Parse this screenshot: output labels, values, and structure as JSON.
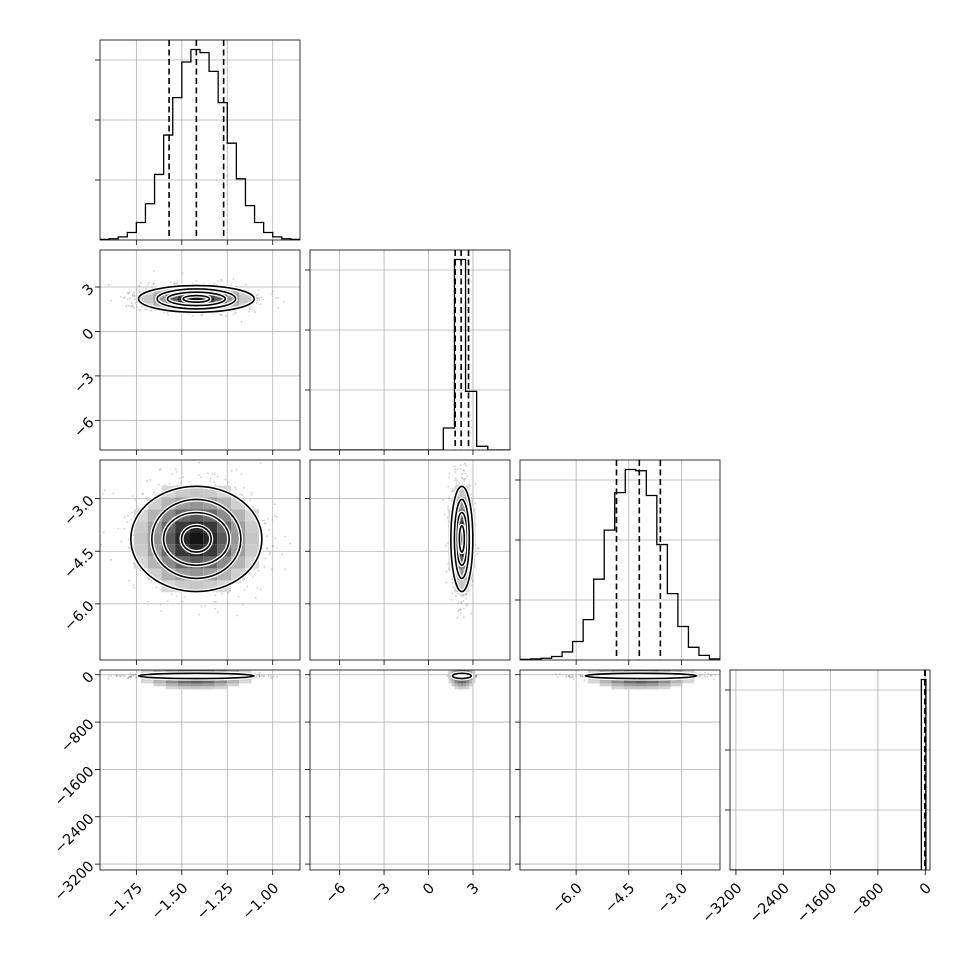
{
  "chart_data": {
    "type": "corner",
    "n_params": 4,
    "title": "",
    "parameter_labels": [
      "",
      "",
      "",
      ""
    ],
    "grid": true,
    "colors": {
      "line": "#000000",
      "grid": "#b0b0b0",
      "points": "#808080"
    },
    "axes": [
      {
        "range": [
          -1.95,
          -0.85
        ],
        "ticks": [
          -1.75,
          -1.5,
          -1.25,
          -1.0
        ],
        "tick_labels": [
          "−1.75",
          "−1.50",
          "−1.25",
          "−1.00"
        ]
      },
      {
        "range": [
          -8.0,
          5.5
        ],
        "ticks": [
          -6,
          -3,
          0,
          3
        ],
        "tick_labels": [
          "−6",
          "−3",
          "0",
          "3"
        ]
      },
      {
        "range": [
          -7.6,
          -1.9
        ],
        "ticks": [
          -6.0,
          -4.5,
          -3.0
        ],
        "tick_labels": [
          "−6.0",
          "−4.5",
          "−3.0"
        ]
      },
      {
        "range": [
          -3300,
          80
        ],
        "ticks": [
          -3200,
          -2400,
          -1600,
          -800,
          0
        ],
        "tick_labels": [
          "−3200",
          "−2400",
          "−1600",
          "−800",
          "0"
        ]
      }
    ],
    "marginals": [
      {
        "param": 0,
        "bin_edges": [
          -1.95,
          -1.9,
          -1.85,
          -1.8,
          -1.75,
          -1.7,
          -1.65,
          -1.6,
          -1.55,
          -1.5,
          -1.45,
          -1.4,
          -1.35,
          -1.3,
          -1.25,
          -1.2,
          -1.15,
          -1.1,
          -1.05,
          -1.0,
          -0.95,
          -0.9,
          -0.85
        ],
        "counts": [
          1,
          2,
          5,
          12,
          28,
          58,
          105,
          168,
          228,
          285,
          305,
          300,
          270,
          220,
          155,
          98,
          55,
          28,
          12,
          5,
          2,
          1
        ],
        "quantiles": [
          -1.57,
          -1.42,
          -1.27
        ]
      },
      {
        "param": 1,
        "bin_edges": [
          -8.0,
          -7.25,
          -6.5,
          -5.75,
          -5.0,
          -4.25,
          -3.5,
          -2.75,
          -2.0,
          -1.25,
          -0.5,
          0.25,
          1.0,
          1.75,
          2.5,
          3.25,
          4.0,
          4.75,
          5.5
        ],
        "counts": [
          0,
          0,
          0,
          0,
          0,
          0,
          0,
          0,
          0,
          0,
          0,
          0,
          30,
          260,
          80,
          5,
          0,
          0
        ],
        "quantiles": [
          1.8,
          2.2,
          2.7
        ]
      },
      {
        "param": 2,
        "bin_edges": [
          -7.6,
          -7.3,
          -7.0,
          -6.7,
          -6.4,
          -6.1,
          -5.8,
          -5.5,
          -5.2,
          -4.9,
          -4.6,
          -4.3,
          -4.0,
          -3.7,
          -3.4,
          -3.1,
          -2.8,
          -2.5,
          -2.2,
          -1.9
        ],
        "counts": [
          1,
          2,
          3,
          6,
          14,
          32,
          70,
          140,
          225,
          290,
          330,
          328,
          285,
          200,
          115,
          58,
          22,
          8,
          2
        ],
        "quantiles": [
          -4.85,
          -4.2,
          -3.6
        ]
      },
      {
        "param": 3,
        "bin_edges": [
          -3300,
          -3223,
          -3146,
          -3069,
          -2992,
          -2915,
          -2838,
          -2761,
          -2684,
          -2607,
          -2530,
          -2453,
          -2376,
          -2299,
          -2222,
          -2145,
          -2068,
          -1991,
          -1914,
          -1837,
          -1760,
          -1683,
          -1606,
          -1529,
          -1452,
          -1375,
          -1298,
          -1221,
          -1144,
          -1067,
          -990,
          -913,
          -836,
          -759,
          -682,
          -605,
          -528,
          -451,
          -374,
          -297,
          -220,
          -143,
          -66,
          11
        ],
        "counts": [
          0,
          0,
          0,
          0,
          0,
          0,
          0,
          0,
          0,
          0,
          0,
          0,
          0,
          0,
          0,
          0,
          0,
          0,
          0,
          0,
          0,
          0,
          0,
          0,
          0,
          0,
          0,
          0,
          0,
          0,
          0,
          0,
          0,
          0,
          0,
          0,
          0,
          0,
          0,
          0,
          0,
          0,
          4000
        ],
        "quantiles": [
          -8,
          -4,
          -1
        ]
      }
    ],
    "joint": [
      {
        "x_param": 0,
        "y_param": 1,
        "center": [
          -1.42,
          2.2
        ],
        "sigma": [
          0.15,
          0.45
        ]
      },
      {
        "x_param": 0,
        "y_param": 2,
        "center": [
          -1.42,
          -4.15
        ],
        "sigma": [
          0.17,
          0.75
        ]
      },
      {
        "x_param": 1,
        "y_param": 2,
        "center": [
          2.25,
          -4.15
        ],
        "sigma": [
          0.35,
          0.75
        ]
      },
      {
        "x_param": 0,
        "y_param": 3,
        "center": [
          -1.42,
          -20
        ],
        "sigma": [
          0.15,
          22
        ]
      },
      {
        "x_param": 1,
        "y_param": 3,
        "center": [
          2.25,
          -20
        ],
        "sigma": [
          0.3,
          22
        ]
      },
      {
        "x_param": 2,
        "y_param": 3,
        "center": [
          -4.15,
          -20
        ],
        "sigma": [
          0.75,
          22
        ]
      }
    ],
    "contour_levels_sigma": [
      0.5,
      1.0,
      1.5,
      2.0
    ]
  }
}
